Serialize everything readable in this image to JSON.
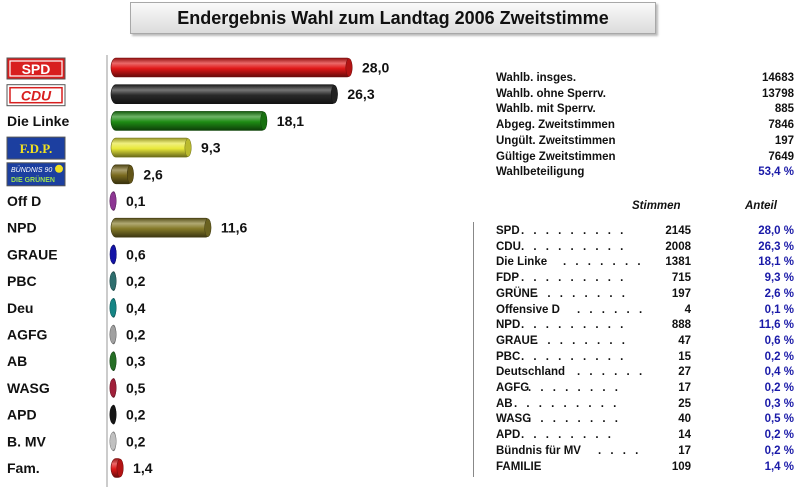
{
  "title": "Endergebnis Wahl zum Landtag 2006 Zweitstimme",
  "chart_data": {
    "type": "bar",
    "orientation": "horizontal",
    "categories": [
      "SPD",
      "CDU",
      "Die Linke",
      "F.D.P.",
      "BÜNDNIS 90 DIE GRÜNEN",
      "Off D",
      "NPD",
      "GRAUE",
      "PBC",
      "Deu",
      "AGFG",
      "AB",
      "WASG",
      "APD",
      "B. MV",
      "Fam."
    ],
    "values": [
      28.0,
      26.3,
      18.1,
      9.3,
      2.6,
      0.1,
      11.6,
      0.6,
      0.2,
      0.4,
      0.2,
      0.3,
      0.5,
      0.2,
      0.2,
      1.4
    ],
    "value_labels": [
      "28,0",
      "26,3",
      "18,1",
      "9,3",
      "2,6",
      "0,1",
      "11,6",
      "0,6",
      "0,2",
      "0,4",
      "0,2",
      "0,3",
      "0,5",
      "0,2",
      "0,2",
      "1,4"
    ],
    "colors": [
      "#e01818",
      "#2a2a2a",
      "#1e8c14",
      "#e8e83a",
      "#7a6a1e",
      "#b043b8",
      "#857a28",
      "#1818d0",
      "#3a8a8a",
      "#1aa6a6",
      "#c8c8c8",
      "#2e8a2e",
      "#c82848",
      "#1a1a1a",
      "#f0f0f0",
      "#e01818"
    ],
    "logo_labels": {
      "SPD": "SPD",
      "CDU": "CDU",
      "FDP": "F.D.P.",
      "GRUENE_1": "BÜNDNIS 90",
      "GRUENE_2": "DIE GRÜNEN"
    },
    "xlim": [
      0,
      28.0
    ],
    "grid": false,
    "legend": "none"
  },
  "summary": {
    "rows": [
      {
        "label": "Wahlb. insges.",
        "value": "14683"
      },
      {
        "label": "Wahlb. ohne Sperrv.",
        "value": "13798"
      },
      {
        "label": "Wahlb. mit Sperrv.",
        "value": "885"
      },
      {
        "label": "Abgeg. Zweitstimmen",
        "value": "7846"
      },
      {
        "label": "Ungült. Zweitstimmen",
        "value": "197"
      },
      {
        "label": "Gültige Zweitstimmen",
        "value": "7649"
      },
      {
        "label": "Wahlbeteiligung",
        "value": "53,4 %"
      }
    ]
  },
  "results": {
    "header_votes": "Stimmen",
    "header_share": "Anteil",
    "rows": [
      {
        "party": "SPD",
        "dots": ". . . . . . . . .",
        "votes": "2145",
        "share": "28,0 %"
      },
      {
        "party": "CDU",
        "dots": ". . . . . . . . .",
        "votes": "2008",
        "share": "26,3 %"
      },
      {
        "party": "Die Linke",
        "dots": ". . . . . . .",
        "votes": "1381",
        "share": "18,1 %"
      },
      {
        "party": "FDP",
        "dots": ". . . . . . . . .",
        "votes": "715",
        "share": "9,3 %"
      },
      {
        "party": "GRÜNE",
        "dots": ". . . . . . . .",
        "votes": "197",
        "share": "2,6 %"
      },
      {
        "party": "Offensive D",
        "dots": ". . . . . .",
        "votes": "4",
        "share": "0,1 %"
      },
      {
        "party": "NPD",
        "dots": ". . . . . . . . .",
        "votes": "888",
        "share": "11,6 %"
      },
      {
        "party": "GRAUE",
        "dots": ". . . . . . . .",
        "votes": "47",
        "share": "0,6 %"
      },
      {
        "party": "PBC",
        "dots": ". . . . . . . . .",
        "votes": "15",
        "share": "0,2 %"
      },
      {
        "party": "Deutschland",
        "dots": ". . . . . .",
        "votes": "27",
        "share": "0,4 %"
      },
      {
        "party": "AGFG",
        "dots": ". . . . . . . .",
        "votes": "17",
        "share": "0,2 %"
      },
      {
        "party": "AB",
        "dots": ". . . . . . . . .",
        "votes": "25",
        "share": "0,3 %"
      },
      {
        "party": "WASG",
        "dots": ". . . . . . . .",
        "votes": "40",
        "share": "0,5 %"
      },
      {
        "party": "APD",
        "dots": ". . . . . . . .",
        "votes": "14",
        "share": "0,2 %"
      },
      {
        "party": "Bündnis für MV",
        "dots": ". . . .",
        "votes": "17",
        "share": "0,2 %"
      },
      {
        "party": "FAMILIE",
        "dots": "",
        "votes": "109",
        "share": "1,4 %"
      }
    ]
  }
}
